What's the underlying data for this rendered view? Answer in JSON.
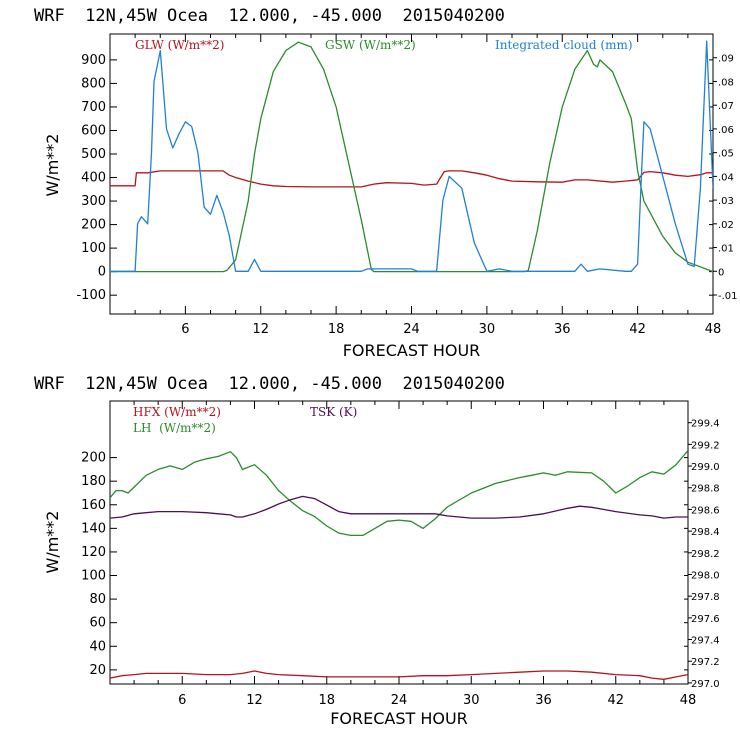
{
  "colors": {
    "red": "#b4141e",
    "green": "#2a8c2a",
    "blue": "#2080d8",
    "purple": "#4a1050",
    "axis": "#000000"
  },
  "chart_data": [
    {
      "type": "line",
      "header": "WRF  12N,45W Ocea  12.000, -45.000  2015040200",
      "title": "WRF  12N,45W Ocea  12.000, -45.000  2015040200",
      "xlabel": "FORECAST HOUR",
      "ylabel": "W/m**2",
      "xlim": [
        0,
        48
      ],
      "xticks": [
        6,
        12,
        18,
        24,
        30,
        36,
        42,
        48
      ],
      "ylim": [
        -180,
        1010
      ],
      "yticks": [
        -100,
        0,
        100,
        200,
        300,
        400,
        500,
        600,
        700,
        800,
        900
      ],
      "y2lim": [
        -0.018,
        0.1
      ],
      "y2ticks": [
        -0.01,
        0,
        0.01,
        0.02,
        0.03,
        0.04,
        0.05,
        0.06,
        0.07,
        0.08,
        0.09
      ],
      "y2ticklabels": [
        "-.01",
        "0",
        ".01",
        ".02",
        ".03",
        ".04",
        ".05",
        ".06",
        ".07",
        ".08",
        ".09"
      ],
      "series": [
        {
          "name": "GLW (W/m**2)",
          "color": "#b4141e",
          "axis": "left",
          "x": [
            0,
            1,
            2,
            2.1,
            3,
            4,
            5,
            6,
            7,
            8,
            9,
            9.5,
            10,
            11,
            12,
            13,
            14,
            16,
            18,
            20,
            21,
            22,
            24,
            25,
            26,
            26.6,
            27,
            28,
            29,
            30,
            31,
            32,
            34,
            36,
            37,
            38,
            40,
            41,
            42,
            42.5,
            43,
            44,
            45,
            46,
            47,
            47.5,
            48
          ],
          "y": [
            365,
            365,
            365,
            420,
            420,
            428,
            428,
            428,
            428,
            428,
            428,
            410,
            400,
            385,
            372,
            365,
            362,
            360,
            360,
            360,
            372,
            378,
            375,
            368,
            372,
            425,
            428,
            428,
            420,
            410,
            395,
            385,
            382,
            380,
            390,
            390,
            380,
            385,
            390,
            422,
            425,
            420,
            410,
            405,
            412,
            420,
            420
          ]
        },
        {
          "name": "GSW (W/m**2)",
          "color": "#2a8c2a",
          "axis": "left",
          "x": [
            0,
            9,
            9.3,
            10,
            11,
            11.5,
            12,
            13,
            14,
            15,
            16,
            17,
            18,
            19,
            20,
            20.8,
            21,
            24,
            33,
            33.3,
            34,
            35,
            36,
            37,
            38,
            38.5,
            38.8,
            39,
            40,
            41,
            41.5,
            42,
            42.5,
            43,
            44,
            45,
            46,
            48
          ],
          "y": [
            0,
            0,
            5,
            50,
            300,
            500,
            650,
            850,
            940,
            975,
            955,
            860,
            700,
            460,
            220,
            10,
            0,
            0,
            0,
            5,
            170,
            460,
            700,
            860,
            940,
            880,
            870,
            900,
            850,
            720,
            650,
            430,
            300,
            250,
            150,
            80,
            40,
            0
          ]
        },
        {
          "name": "Integrated cloud (mm)",
          "color": "#2080d8",
          "axis": "right",
          "x": [
            0,
            2,
            2.2,
            2.5,
            3,
            3.3,
            3.5,
            4,
            4.5,
            5,
            5.5,
            6,
            6.5,
            7,
            7.5,
            8,
            8.5,
            9,
            9.5,
            10,
            11,
            11.5,
            12,
            20,
            20.5,
            24,
            24.5,
            26,
            26.5,
            27,
            28,
            29,
            30,
            31,
            32,
            37,
            37.5,
            38,
            39,
            41,
            41.5,
            42,
            42.3,
            42.5,
            43,
            44,
            45,
            46,
            46.5,
            47,
            47.5,
            48
          ],
          "y": [
            0,
            0,
            0.02,
            0.023,
            0.02,
            0.05,
            0.08,
            0.093,
            0.06,
            0.052,
            0.058,
            0.063,
            0.061,
            0.05,
            0.027,
            0.024,
            0.032,
            0.025,
            0.015,
            0,
            0,
            0.005,
            0,
            0,
            0.001,
            0.001,
            0,
            0,
            0.03,
            0.04,
            0.035,
            0.012,
            0,
            0.001,
            0,
            0,
            0.003,
            0,
            0.001,
            0,
            0,
            0.003,
            0.04,
            0.063,
            0.06,
            0.04,
            0.02,
            0.003,
            0.002,
            0.035,
            0.097,
            0.035
          ]
        }
      ]
    },
    {
      "type": "line",
      "header": "WRF  12N,45W Ocea  12.000, -45.000  2015040200",
      "title": "WRF  12N,45W Ocea  12.000, -45.000  2015040200",
      "xlabel": "FORECAST HOUR",
      "ylabel": "W/m**2",
      "xlim": [
        0,
        48
      ],
      "xticks": [
        6,
        12,
        18,
        24,
        30,
        36,
        42,
        48
      ],
      "ylim": [
        8,
        248
      ],
      "yticks": [
        20,
        40,
        60,
        80,
        100,
        120,
        140,
        160,
        180,
        200
      ],
      "y2lim": [
        296.99,
        299.6
      ],
      "y2ticks": [
        297.0,
        297.2,
        297.4,
        297.6,
        297.8,
        298.0,
        298.2,
        298.4,
        298.6,
        298.8,
        299.0,
        299.2,
        299.4
      ],
      "y2ticklabels": [
        "297.0",
        "297.2",
        "297.4",
        "297.6",
        "297.8",
        "298.0",
        "298.2",
        "298.4",
        "298.6",
        "298.8",
        "299.0",
        "299.2",
        "299.4"
      ],
      "series": [
        {
          "name": "HFX (W/m**2)",
          "color": "#b4141e",
          "axis": "left",
          "x": [
            0,
            1,
            2,
            3,
            4,
            6,
            8,
            10,
            11,
            12,
            13,
            14,
            16,
            18,
            20,
            22,
            24,
            26,
            28,
            30,
            32,
            34,
            36,
            38,
            40,
            42,
            44,
            45,
            46,
            47,
            48
          ],
          "y": [
            13,
            15,
            16,
            17,
            17,
            17,
            16,
            16,
            17,
            19,
            17,
            16,
            15,
            14,
            14,
            14,
            14,
            15,
            15,
            16,
            17,
            18,
            19,
            19,
            18,
            16,
            15,
            13,
            12,
            14,
            16
          ]
        },
        {
          "name": "LH  (W/m**2)",
          "color": "#2a8c2a",
          "axis": "left",
          "x": [
            0,
            0.5,
            1,
            1.5,
            2,
            3,
            4,
            5,
            6,
            7,
            8,
            9,
            10,
            10.5,
            11,
            12,
            13,
            14,
            15,
            16,
            17,
            18,
            19,
            20,
            21,
            22,
            23,
            24,
            25,
            26,
            27,
            28,
            30,
            32,
            34,
            35,
            36,
            37,
            38,
            40,
            41,
            42,
            43,
            44,
            45,
            46,
            47,
            48
          ],
          "y": [
            166,
            172,
            172,
            170,
            175,
            185,
            190,
            193,
            190,
            196,
            199,
            201,
            205,
            200,
            190,
            194,
            185,
            172,
            163,
            155,
            150,
            142,
            136,
            134,
            134,
            140,
            146,
            147,
            146,
            140,
            148,
            158,
            170,
            178,
            183,
            185,
            187,
            185,
            188,
            187,
            180,
            170,
            176,
            183,
            188,
            186,
            194,
            206
          ]
        },
        {
          "name": "TSK (K)",
          "color": "#4a1050",
          "axis": "right",
          "x": [
            0,
            1,
            2,
            3,
            4,
            6,
            8,
            9,
            10,
            10.5,
            11,
            12,
            13,
            14,
            15,
            16,
            17,
            18,
            19,
            20,
            22,
            24,
            26,
            27,
            28,
            30,
            32,
            34,
            36,
            38,
            39,
            40,
            42,
            44,
            45,
            46,
            47,
            48
          ],
          "y": [
            298.52,
            298.53,
            298.56,
            298.57,
            298.58,
            298.58,
            298.57,
            298.56,
            298.55,
            298.53,
            298.53,
            298.56,
            298.6,
            298.65,
            298.69,
            298.72,
            298.7,
            298.64,
            298.58,
            298.56,
            298.56,
            298.56,
            298.56,
            298.56,
            298.54,
            298.52,
            298.52,
            298.53,
            298.56,
            298.61,
            298.63,
            298.62,
            298.58,
            298.55,
            298.54,
            298.52,
            298.53,
            298.53
          ]
        }
      ]
    }
  ]
}
